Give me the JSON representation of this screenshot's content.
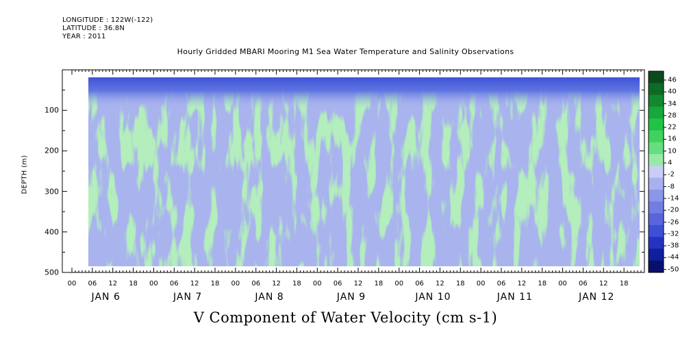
{
  "meta": {
    "longitude": "LONGITUDE : 122W(-122)",
    "latitude": "LATITUDE : 36.8N",
    "year": "YEAR : 2011"
  },
  "chart_data": {
    "type": "heatmap",
    "title": "Hourly Gridded MBARI Mooring M1 Sea Water Temperature and Salinity Observations",
    "xlabel": "V Component of Water Velocity (cm s-1)",
    "ylabel": "DEPTH (m)",
    "ylim": [
      500,
      0
    ],
    "y_ticks": [
      "100",
      "200",
      "300",
      "400",
      "500"
    ],
    "x_hour_ticks": [
      "00",
      "06",
      "12",
      "18",
      "00",
      "06",
      "12",
      "18",
      "00",
      "06",
      "12",
      "18",
      "00",
      "06",
      "12",
      "18",
      "00",
      "06",
      "12",
      "18",
      "00",
      "06",
      "12",
      "18",
      "00",
      "06",
      "12",
      "18"
    ],
    "x_days": [
      "JAN 6",
      "JAN 7",
      "JAN 8",
      "JAN 9",
      "JAN 10",
      "JAN 11",
      "JAN 12"
    ],
    "colorbar_labels": [
      "46",
      "40",
      "34",
      "28",
      "22",
      "16",
      "10",
      "4",
      "-2",
      "-8",
      "-14",
      "-20",
      "-26",
      "-32",
      "-38",
      "-44",
      "-50"
    ],
    "colorbar_colors": [
      "#0b4a1d",
      "#0f6a26",
      "#12892f",
      "#17a73a",
      "#1fc447",
      "#3fd25e",
      "#66dd7f",
      "#98e9a8",
      "#c9cdf5",
      "#a8b1ee",
      "#8c97e8",
      "#737ee2",
      "#5a65dc",
      "#3d4fd6",
      "#2434c0",
      "#111f9c",
      "#08106e"
    ]
  }
}
